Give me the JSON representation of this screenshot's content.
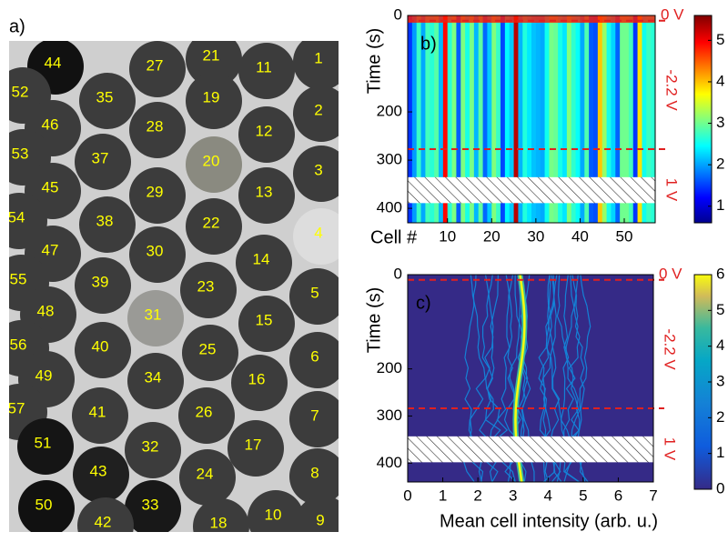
{
  "panel_a": {
    "label": "a)",
    "cells": [
      "44",
      "27",
      "21",
      "11",
      "1",
      "52",
      "35",
      "19",
      "2",
      "46",
      "28",
      "12",
      "53",
      "37",
      "20",
      "3",
      "45",
      "29",
      "13",
      "54",
      "38",
      "22",
      "4",
      "47",
      "30",
      "14",
      "55",
      "39",
      "23",
      "5",
      "48",
      "31",
      "15",
      "56",
      "40",
      "25",
      "6",
      "49",
      "34",
      "16",
      "57",
      "41",
      "26",
      "7",
      "51",
      "32",
      "17",
      "43",
      "24",
      "8",
      "50",
      "33",
      "10",
      "42",
      "18",
      "9"
    ]
  },
  "chart_data": [
    {
      "type": "heatmap",
      "label": "b)",
      "ylabel": "Time (s)",
      "xlabel": "Cell #",
      "xlim": [
        1,
        57
      ],
      "xticks": [
        10,
        20,
        30,
        40,
        50
      ],
      "ylim": [
        0,
        430
      ],
      "yticks": [
        0,
        200,
        300,
        400
      ],
      "clim": [
        0.6,
        5.6
      ],
      "cticks": [
        1,
        2,
        3,
        4,
        5
      ],
      "colormap": "jet",
      "annotations": [
        "0 V",
        "-2.2 V",
        "1 V"
      ]
    },
    {
      "type": "heatmap",
      "label": "c)",
      "ylabel": "Time (s)",
      "xlabel": "Mean cell intensity (arb. u.)",
      "xlim": [
        0,
        7
      ],
      "xticks": [
        0,
        1,
        2,
        3,
        4,
        5,
        6,
        7
      ],
      "ylim": [
        0,
        440
      ],
      "yticks": [
        0,
        200,
        300,
        400
      ],
      "clim": [
        0,
        6
      ],
      "cticks": [
        0,
        1,
        2,
        3,
        4,
        5,
        6
      ],
      "colormap": "parula",
      "annotations": [
        "0 V",
        "-2.2 V",
        "1 V"
      ]
    }
  ]
}
